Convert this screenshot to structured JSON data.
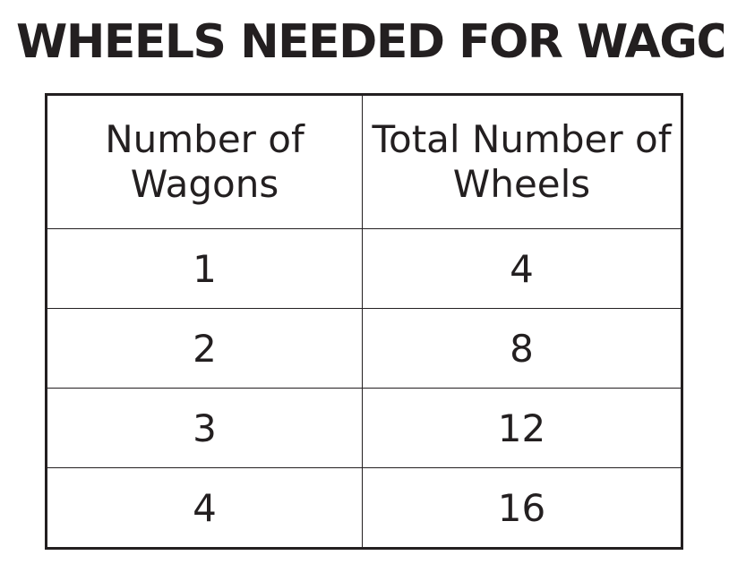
{
  "chart_data": {
    "type": "table",
    "title": "WHEELS NEEDED FOR WAGONS",
    "columns": [
      "Number of Wagons",
      "Total Number of Wheels"
    ],
    "rows": [
      [
        "1",
        "4"
      ],
      [
        "2",
        "8"
      ],
      [
        "3",
        "12"
      ],
      [
        "4",
        "16"
      ]
    ]
  }
}
